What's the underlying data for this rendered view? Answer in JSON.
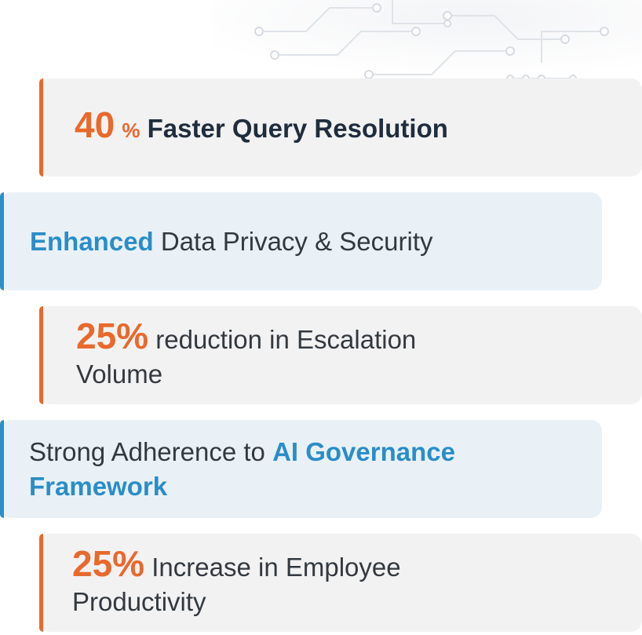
{
  "stats": [
    {
      "highlight": "40",
      "unit": "%",
      "rest": "Faster Query Resolution"
    },
    {
      "highlight": "Enhanced",
      "rest": "Data Privacy & Security"
    },
    {
      "highlight": "25%",
      "line1": "reduction in Escalation",
      "line2": "Volume"
    },
    {
      "prefix": "Strong Adherence to",
      "highlight1": "AI Governance",
      "highlight2": "Framework"
    },
    {
      "highlight": "25%",
      "line1": "Increase in Employee",
      "line2": "Productivity"
    }
  ],
  "colors": {
    "orange": "#e8692c",
    "blue": "#2a8dc8",
    "dark": "#1f2d3d",
    "card_gray": "#f2f2f3",
    "card_blue": "#eaf1f6"
  }
}
